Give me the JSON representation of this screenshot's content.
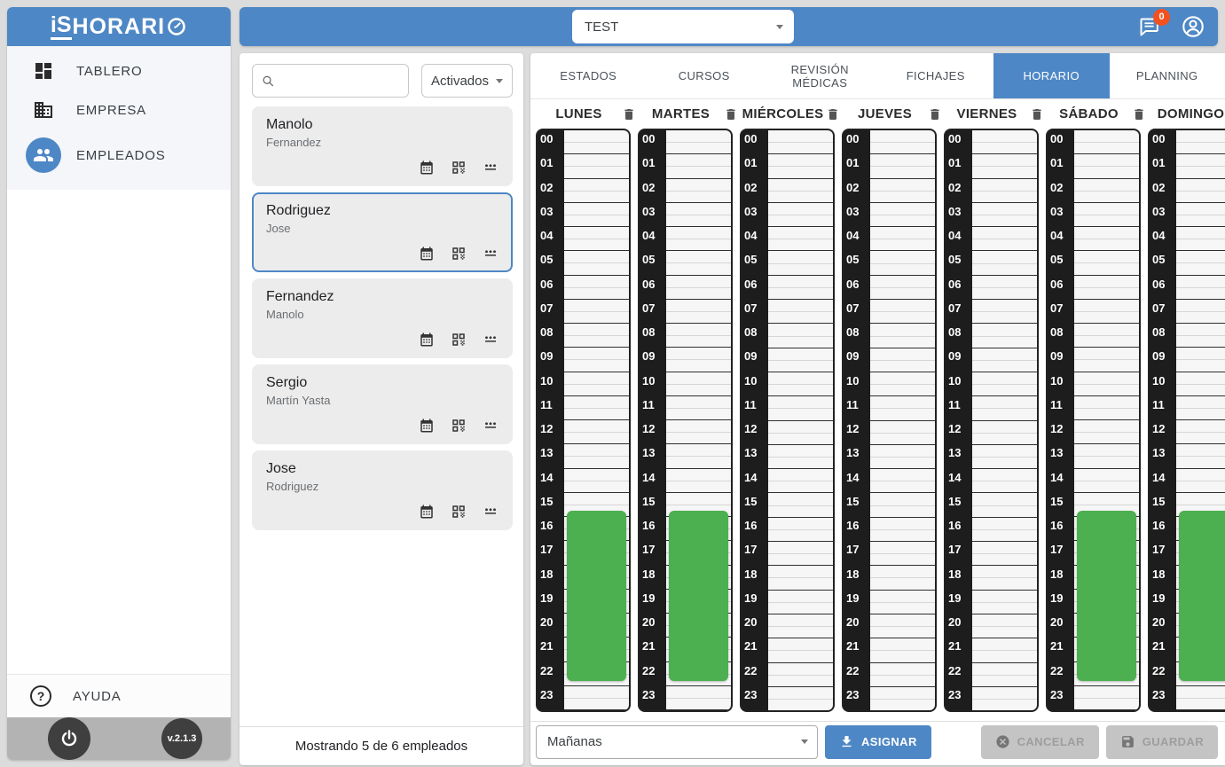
{
  "app": {
    "logo_prefix": "iS",
    "logo_rest": "HORARI",
    "version": "v.2.1.3"
  },
  "topbar": {
    "company_select_value": "TEST",
    "notification_count": "0"
  },
  "sidebar": {
    "items": [
      {
        "label": "TABLERO"
      },
      {
        "label": "EMPRESA"
      },
      {
        "label": "EMPLEADOS",
        "active": true
      }
    ],
    "help_label": "AYUDA"
  },
  "employees": {
    "filter_label": "Activados",
    "list": [
      {
        "name": "Manolo",
        "surname": "Fernandez",
        "selected": false
      },
      {
        "name": "Rodriguez",
        "surname": "Jose",
        "selected": true
      },
      {
        "name": "Fernandez",
        "surname": "Manolo",
        "selected": false
      },
      {
        "name": "Sergio",
        "surname": "Martín Yasta",
        "selected": false
      },
      {
        "name": "Jose",
        "surname": "Rodriguez",
        "selected": false
      }
    ],
    "footer_text": "Mostrando 5 de 6 empleados"
  },
  "tabs": [
    {
      "label": "ESTADOS"
    },
    {
      "label": "CURSOS"
    },
    {
      "label": "REVISIÓN MÉDICAS"
    },
    {
      "label": "FICHAJES"
    },
    {
      "label": "HORARIO",
      "active": true
    },
    {
      "label": "PLANNING"
    }
  ],
  "schedule": {
    "hour_labels_start": "00",
    "hour_labels_end": "23",
    "days": [
      {
        "name": "LUNES",
        "block": {
          "start_hour": 15.75,
          "end_hour": 22.8
        }
      },
      {
        "name": "MARTES",
        "block": {
          "start_hour": 15.75,
          "end_hour": 22.8
        }
      },
      {
        "name": "MIÉRCOLES",
        "block": null
      },
      {
        "name": "JUEVES",
        "block": null
      },
      {
        "name": "VIERNES",
        "block": null
      },
      {
        "name": "SÁBADO",
        "block": {
          "start_hour": 15.75,
          "end_hour": 22.8
        }
      },
      {
        "name": "DOMINGO",
        "block": {
          "start_hour": 15.75,
          "end_hour": 22.8
        }
      }
    ]
  },
  "footer_bar": {
    "shift_select_value": "Mañanas",
    "assign_label": "ASIGNAR",
    "cancel_label": "CANCELAR",
    "save_label": "GUARDAR"
  },
  "colors": {
    "primary": "#4e87c5",
    "block_green": "#4caf50",
    "badge": "#f4511e",
    "hour_strip": "#1d1d1d"
  }
}
